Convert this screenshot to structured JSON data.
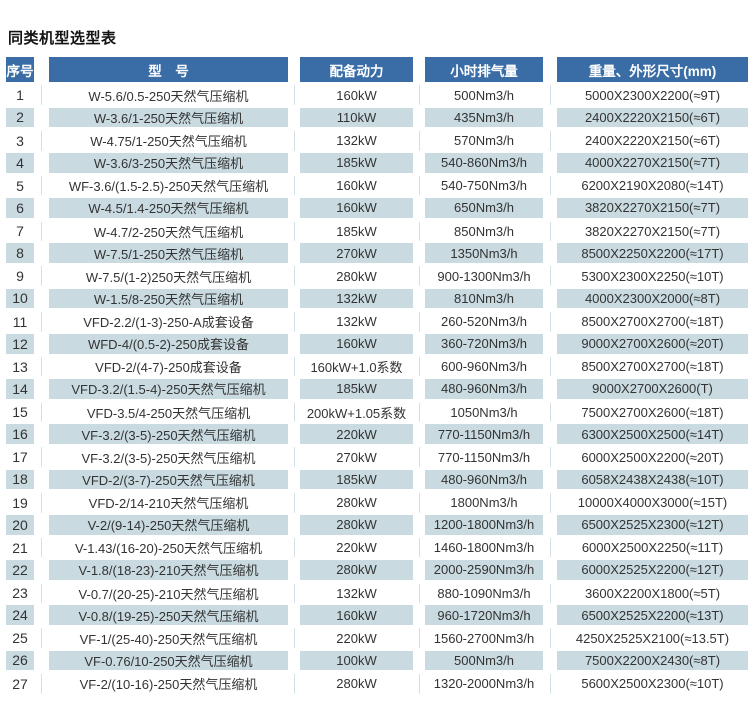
{
  "title": "同类机型选型表",
  "colors": {
    "header_bg": "#3a6da6",
    "header_text": "#ffffff",
    "alt_row_bg": "#c9dbe1",
    "body_text": "#333333"
  },
  "table": {
    "headers": [
      "序号",
      "型　号",
      "配备动力",
      "小时排气量",
      "重量、外形尺寸(mm)"
    ],
    "rows": [
      {
        "no": "1",
        "model": "W-5.6/0.5-250天然气压缩机",
        "power": "160kW",
        "flow": "500Nm3/h",
        "size": "5000X2300X2200(≈9T)"
      },
      {
        "no": "2",
        "model": "W-3.6/1-250天然气压缩机",
        "power": "110kW",
        "flow": "435Nm3/h",
        "size": "2400X2220X2150(≈6T)"
      },
      {
        "no": "3",
        "model": "W-4.75/1-250天然气压缩机",
        "power": "132kW",
        "flow": "570Nm3/h",
        "size": "2400X2220X2150(≈6T)"
      },
      {
        "no": "4",
        "model": "W-3.6/3-250天然气压缩机",
        "power": "185kW",
        "flow": "540-860Nm3/h",
        "size": "4000X2270X2150(≈7T)"
      },
      {
        "no": "5",
        "model": "WF-3.6/(1.5-2.5)-250天然气压缩机",
        "power": "160kW",
        "flow": "540-750Nm3/h",
        "size": "6200X2190X2080(≈14T)"
      },
      {
        "no": "6",
        "model": "W-4.5/1.4-250天然气压缩机",
        "power": "160kW",
        "flow": "650Nm3/h",
        "size": "3820X2270X2150(≈7T)"
      },
      {
        "no": "7",
        "model": "W-4.7/2-250天然气压缩机",
        "power": "185kW",
        "flow": "850Nm3/h",
        "size": "3820X2270X2150(≈7T)"
      },
      {
        "no": "8",
        "model": "W-7.5/1-250天然气压缩机",
        "power": "270kW",
        "flow": "1350Nm3/h",
        "size": "8500X2250X2200(≈17T)"
      },
      {
        "no": "9",
        "model": "W-7.5/(1-2)250天然气压缩机",
        "power": "280kW",
        "flow": "900-1300Nm3/h",
        "size": "5300X2300X2250(≈10T)"
      },
      {
        "no": "10",
        "model": "W-1.5/8-250天然气压缩机",
        "power": "132kW",
        "flow": "810Nm3/h",
        "size": "4000X2300X2000(≈8T)"
      },
      {
        "no": "11",
        "model": "VFD-2.2/(1-3)-250-A成套设备",
        "power": "132kW",
        "flow": "260-520Nm3/h",
        "size": "8500X2700X2700(≈18T)"
      },
      {
        "no": "12",
        "model": "WFD-4/(0.5-2)-250成套设备",
        "power": "160kW",
        "flow": "360-720Nm3/h",
        "size": "9000X2700X2600(≈20T)"
      },
      {
        "no": "13",
        "model": "VFD-2/(4-7)-250成套设备",
        "power": "160kW+1.0系数",
        "flow": "600-960Nm3/h",
        "size": "8500X2700X2700(≈18T)"
      },
      {
        "no": "14",
        "model": "VFD-3.2/(1.5-4)-250天然气压缩机",
        "power": "185kW",
        "flow": "480-960Nm3/h",
        "size": "9000X2700X2600(T)"
      },
      {
        "no": "15",
        "model": "VFD-3.5/4-250天然气压缩机",
        "power": "200kW+1.05系数",
        "flow": "1050Nm3/h",
        "size": "7500X2700X2600(≈18T)"
      },
      {
        "no": "16",
        "model": "VF-3.2/(3-5)-250天然气压缩机",
        "power": "220kW",
        "flow": "770-1150Nm3/h",
        "size": "6300X2500X2500(≈14T)"
      },
      {
        "no": "17",
        "model": "VF-3.2/(3-5)-250天然气压缩机",
        "power": "270kW",
        "flow": "770-1150Nm3/h",
        "size": "6000X2500X2200(≈20T)"
      },
      {
        "no": "18",
        "model": "VFD-2/(3-7)-250天然气压缩机",
        "power": "185kW",
        "flow": "480-960Nm3/h",
        "size": "6058X2438X2438(≈10T)"
      },
      {
        "no": "19",
        "model": "VFD-2/14-210天然气压缩机",
        "power": "280kW",
        "flow": "1800Nm3/h",
        "size": "10000X4000X3000(≈15T)"
      },
      {
        "no": "20",
        "model": "V-2/(9-14)-250天然气压缩机",
        "power": "280kW",
        "flow": "1200-1800Nm3/h",
        "size": "6500X2525X2300(≈12T)"
      },
      {
        "no": "21",
        "model": "V-1.43/(16-20)-250天然气压缩机",
        "power": "220kW",
        "flow": "1460-1800Nm3/h",
        "size": "6000X2500X2250(≈11T)"
      },
      {
        "no": "22",
        "model": "V-1.8/(18-23)-210天然气压缩机",
        "power": "280kW",
        "flow": "2000-2590Nm3/h",
        "size": "6000X2525X2200(≈12T)"
      },
      {
        "no": "23",
        "model": "V-0.7/(20-25)-210天然气压缩机",
        "power": "132kW",
        "flow": "880-1090Nm3/h",
        "size": "3600X2200X1800(≈5T)"
      },
      {
        "no": "24",
        "model": "V-0.8/(19-25)-250天然气压缩机",
        "power": "160kW",
        "flow": "960-1720Nm3/h",
        "size": "6500X2525X2200(≈13T)"
      },
      {
        "no": "25",
        "model": "VF-1/(25-40)-250天然气压缩机",
        "power": "220kW",
        "flow": "1560-2700Nm3/h",
        "size": "4250X2525X2100(≈13.5T)"
      },
      {
        "no": "26",
        "model": "VF-0.76/10-250天然气压缩机",
        "power": "100kW",
        "flow": "500Nm3/h",
        "size": "7500X2200X2430(≈8T)"
      },
      {
        "no": "27",
        "model": "VF-2/(10-16)-250天然气压缩机",
        "power": "280kW",
        "flow": "1320-2000Nm3/h",
        "size": "5600X2500X2300(≈10T)"
      }
    ]
  }
}
